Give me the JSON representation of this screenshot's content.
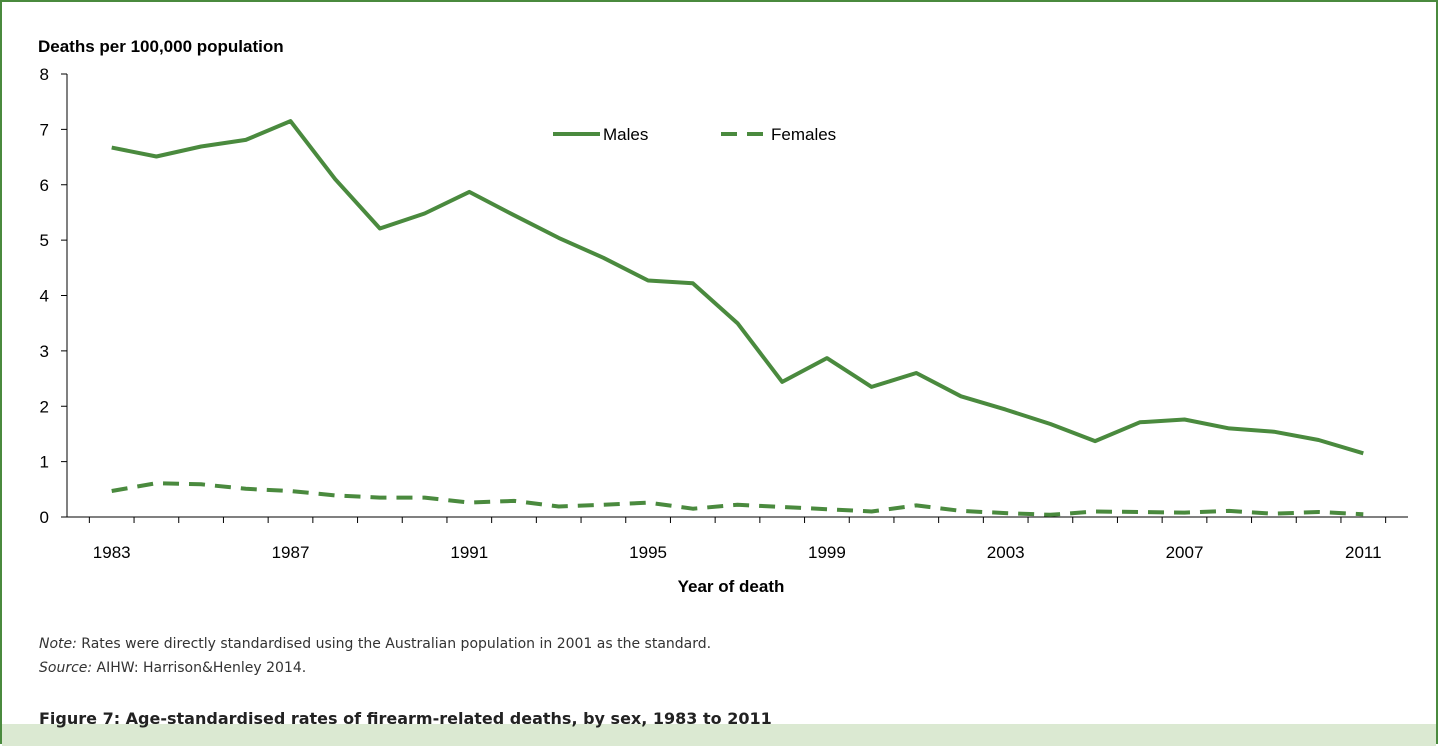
{
  "figure": {
    "note_label": "Note:",
    "note_text": " Rates were directly standardised using the Australian population in 2001 as the standard.",
    "source_label": "Source:",
    "source_text": " AIHW: Harrison&Henley 2014.",
    "caption": "Figure 7: Age-standardised rates of firearm-related deaths, by sex, 1983 to 2011"
  },
  "colors": {
    "series": "#4a8a3e",
    "frame": "#4a8a3e",
    "axis": "#000000",
    "caption_band": "#dbe9d2"
  },
  "chart_data": {
    "type": "line",
    "title": "",
    "ylabel": "Deaths per 100,000 population",
    "xlabel": "Year of death",
    "ylim": [
      0,
      8
    ],
    "yticks": [
      "0",
      "1",
      "2",
      "3",
      "4",
      "5",
      "6",
      "7",
      "8"
    ],
    "xtick_labels": [
      "1983",
      "1987",
      "1991",
      "1995",
      "1999",
      "2003",
      "2007",
      "2011"
    ],
    "grid": false,
    "legend_position": "top-center",
    "x": [
      1983,
      1984,
      1985,
      1986,
      1987,
      1988,
      1989,
      1990,
      1991,
      1992,
      1993,
      1994,
      1995,
      1996,
      1997,
      1998,
      1999,
      2000,
      2001,
      2002,
      2003,
      2004,
      2005,
      2006,
      2007,
      2008,
      2009,
      2010,
      2011
    ],
    "series": [
      {
        "name": "Males",
        "style": "solid",
        "values": [
          6.67,
          6.51,
          6.69,
          6.81,
          7.15,
          6.1,
          5.21,
          5.48,
          5.87,
          5.45,
          5.04,
          4.68,
          4.27,
          4.22,
          3.5,
          2.44,
          2.87,
          2.35,
          2.6,
          2.18,
          1.94,
          1.68,
          1.37,
          1.71,
          1.76,
          1.6,
          1.54,
          1.39,
          1.15
        ]
      },
      {
        "name": "Females",
        "style": "dashed",
        "values": [
          0.47,
          0.61,
          0.59,
          0.51,
          0.47,
          0.39,
          0.35,
          0.35,
          0.26,
          0.29,
          0.19,
          0.22,
          0.26,
          0.15,
          0.22,
          0.18,
          0.14,
          0.1,
          0.21,
          0.11,
          0.07,
          0.04,
          0.1,
          0.09,
          0.08,
          0.11,
          0.06,
          0.09,
          0.05
        ]
      }
    ]
  }
}
